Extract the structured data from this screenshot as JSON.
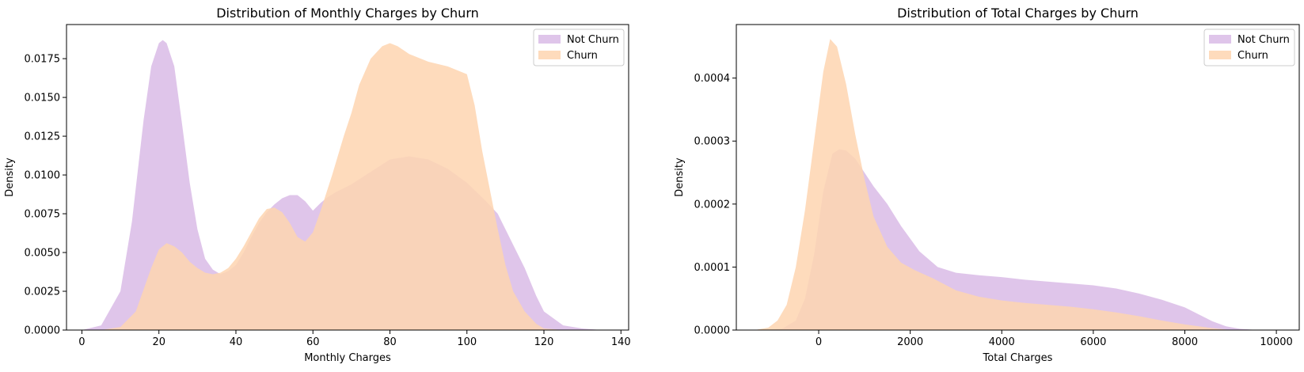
{
  "chart_data": [
    {
      "type": "area",
      "title": "Distribution of Monthly Charges by Churn",
      "xlabel": "Monthly Charges",
      "ylabel": "Density",
      "xlim": [
        -4,
        142
      ],
      "ylim": [
        0,
        0.0197
      ],
      "xticks": [
        0,
        20,
        40,
        60,
        80,
        100,
        120,
        140
      ],
      "xtick_labels": [
        "0",
        "20",
        "40",
        "60",
        "80",
        "100",
        "120",
        "140"
      ],
      "yticks": [
        0,
        0.0025,
        0.005,
        0.0075,
        0.01,
        0.0125,
        0.015,
        0.0175
      ],
      "ytick_labels": [
        "0.0000",
        "0.0025",
        "0.0050",
        "0.0075",
        "0.0100",
        "0.0125",
        "0.0150",
        "0.0175"
      ],
      "legend_position": "top-right",
      "grid": false,
      "series": [
        {
          "name": "Not Churn",
          "color": "#d9bbe6",
          "x": [
            0,
            5,
            10,
            13,
            16,
            18,
            20,
            21,
            22,
            24,
            26,
            28,
            30,
            32,
            34,
            36,
            38,
            40,
            42,
            44,
            46,
            48,
            50,
            52,
            54,
            56,
            58,
            60,
            62,
            64,
            66,
            70,
            75,
            80,
            85,
            90,
            95,
            100,
            105,
            108,
            110,
            112,
            115,
            118,
            120,
            125,
            130,
            135
          ],
          "values": [
            0,
            0.0003,
            0.0025,
            0.007,
            0.0135,
            0.017,
            0.0185,
            0.0187,
            0.0185,
            0.017,
            0.0133,
            0.0095,
            0.0065,
            0.0046,
            0.0039,
            0.0036,
            0.0038,
            0.0042,
            0.005,
            0.006,
            0.0069,
            0.0076,
            0.0081,
            0.0085,
            0.0087,
            0.0087,
            0.0083,
            0.0077,
            0.0082,
            0.0086,
            0.0089,
            0.0094,
            0.0102,
            0.011,
            0.0112,
            0.011,
            0.0104,
            0.0095,
            0.0083,
            0.0075,
            0.0065,
            0.0055,
            0.004,
            0.0022,
            0.0012,
            0.0003,
            0.0001,
            0
          ]
        },
        {
          "name": "Churn",
          "color": "#fed5b0",
          "x": [
            5,
            10,
            14,
            18,
            20,
            22,
            24,
            26,
            28,
            30,
            32,
            34,
            36,
            38,
            40,
            42,
            44,
            46,
            48,
            50,
            52,
            54,
            56,
            58,
            60,
            62,
            65,
            68,
            70,
            72,
            75,
            78,
            80,
            82,
            85,
            90,
            95,
            100,
            102,
            104,
            106,
            108,
            110,
            112,
            115,
            118,
            120,
            125
          ],
          "values": [
            0,
            0.0002,
            0.0012,
            0.004,
            0.0052,
            0.0056,
            0.0054,
            0.005,
            0.0044,
            0.004,
            0.0037,
            0.0036,
            0.0037,
            0.004,
            0.0046,
            0.0054,
            0.0063,
            0.0072,
            0.0078,
            0.0079,
            0.0076,
            0.0069,
            0.006,
            0.0057,
            0.0063,
            0.0077,
            0.01,
            0.0125,
            0.014,
            0.0158,
            0.0175,
            0.0183,
            0.0185,
            0.0183,
            0.0178,
            0.0173,
            0.017,
            0.0165,
            0.0145,
            0.0115,
            0.009,
            0.0065,
            0.0042,
            0.0025,
            0.0012,
            0.0004,
            0.0001,
            0
          ]
        }
      ]
    },
    {
      "type": "area",
      "title": "Distribution of Total Charges by Churn",
      "xlabel": "Total Charges",
      "ylabel": "Density",
      "xlim": [
        -1800,
        10500
      ],
      "ylim": [
        0,
        0.000485
      ],
      "xticks": [
        0,
        2000,
        4000,
        6000,
        8000,
        10000
      ],
      "xtick_labels": [
        "0",
        "2000",
        "4000",
        "6000",
        "8000",
        "10000"
      ],
      "yticks": [
        0,
        0.0001,
        0.0002,
        0.0003,
        0.0004
      ],
      "ytick_labels": [
        "0.0000",
        "0.0001",
        "0.0002",
        "0.0003",
        "0.0004"
      ],
      "legend_position": "top-right",
      "grid": false,
      "series": [
        {
          "name": "Not Churn",
          "color": "#d9bbe6",
          "x": [
            -1200,
            -800,
            -500,
            -300,
            -100,
            100,
            300,
            450,
            600,
            800,
            1000,
            1200,
            1500,
            1800,
            2200,
            2600,
            3000,
            3500,
            4000,
            4500,
            5000,
            5500,
            6000,
            6500,
            7000,
            7500,
            8000,
            8300,
            8600,
            8900,
            9200,
            9600
          ],
          "values": [
            0,
            2e-06,
            1.5e-05,
            5e-05,
            0.00012,
            0.00022,
            0.00028,
            0.000287,
            0.000285,
            0.000272,
            0.00025,
            0.000228,
            0.0002,
            0.000165,
            0.000125,
            0.0001,
            9.1e-05,
            8.7e-05,
            8.4e-05,
            8e-05,
            7.7e-05,
            7.4e-05,
            7.1e-05,
            6.6e-05,
            5.8e-05,
            4.8e-05,
            3.6e-05,
            2.5e-05,
            1.4e-05,
            6e-06,
            2e-06,
            0
          ]
        },
        {
          "name": "Churn",
          "color": "#fed5b0",
          "x": [
            -1400,
            -1100,
            -900,
            -700,
            -500,
            -300,
            -100,
            100,
            250,
            400,
            600,
            800,
            1000,
            1200,
            1500,
            1800,
            2100,
            2500,
            3000,
            3500,
            4000,
            4500,
            5000,
            5500,
            6000,
            6500,
            7000,
            7500,
            8000,
            8500,
            9000
          ],
          "values": [
            0,
            4e-06,
            1.5e-05,
            4e-05,
            0.0001,
            0.00019,
            0.0003,
            0.00041,
            0.000462,
            0.00045,
            0.00039,
            0.00031,
            0.00024,
            0.00018,
            0.000132,
            0.000107,
            9.5e-05,
            8.2e-05,
            6.3e-05,
            5.3e-05,
            4.7e-05,
            4.3e-05,
            4e-05,
            3.7e-05,
            3.3e-05,
            2.8e-05,
            2.2e-05,
            1.5e-05,
            9e-06,
            4e-06,
            0
          ]
        }
      ]
    }
  ]
}
